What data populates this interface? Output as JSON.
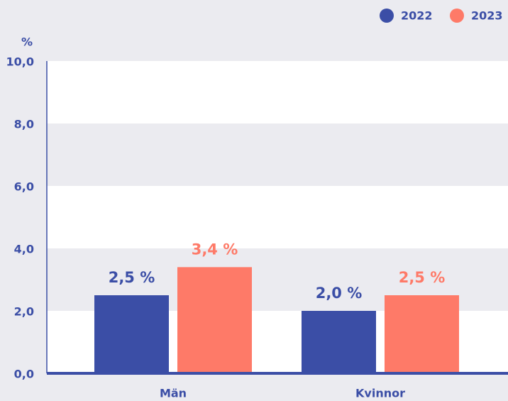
{
  "chart_data": {
    "type": "bar",
    "y_label": "%",
    "categories": [
      "Män",
      "Kvinnor"
    ],
    "series": [
      {
        "name": "2022",
        "color": "#3b4ea6",
        "values": [
          2.5,
          2.0
        ],
        "value_labels": [
          "2,5 %",
          "2,0 %"
        ]
      },
      {
        "name": "2023",
        "color": "#fe7a68",
        "values": [
          3.4,
          2.5
        ],
        "value_labels": [
          "3,4 %",
          "2,5 %"
        ]
      }
    ],
    "ylim": [
      0,
      10
    ],
    "yticks": [
      {
        "value": 0,
        "label": "0,0"
      },
      {
        "value": 2,
        "label": "2,0"
      },
      {
        "value": 4,
        "label": "4,0"
      },
      {
        "value": 6,
        "label": "6,0"
      },
      {
        "value": 8,
        "label": "8,0"
      },
      {
        "value": 10,
        "label": "10,0"
      }
    ],
    "legend": "top-right"
  }
}
